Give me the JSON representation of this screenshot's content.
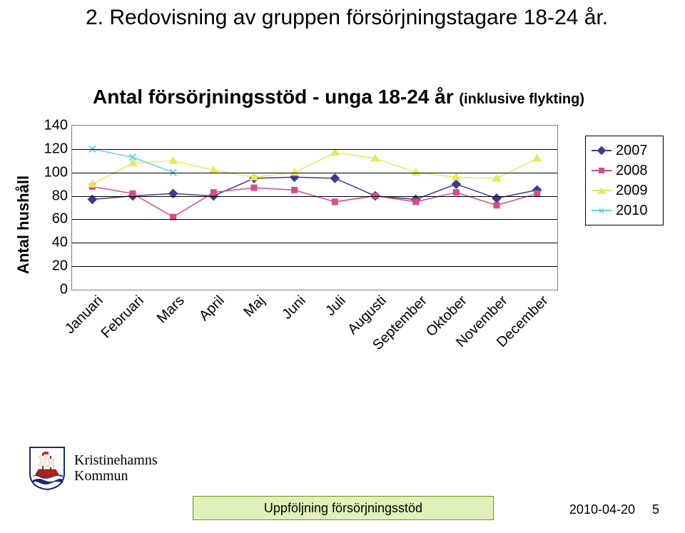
{
  "page_title": "2. Redovisning av gruppen försörjningstagare 18-24 år.",
  "chart": {
    "title_main": "Antal försörjningsstöd - unga 18-24 år ",
    "title_sub": "(inklusive flykting)",
    "ylabel": "Antal hushåll",
    "ylim": [
      0,
      140
    ],
    "ytick_step": 20,
    "yticks": [
      0,
      20,
      40,
      60,
      80,
      100,
      120,
      140
    ],
    "categories": [
      "Januari",
      "Februari",
      "Mars",
      "April",
      "Maj",
      "Juni",
      "Juli",
      "Augusti",
      "September",
      "Oktober",
      "November",
      "December"
    ],
    "series": [
      {
        "name": "2007",
        "color": "#3e3a92",
        "marker": "diamond",
        "values": [
          77,
          80,
          82,
          80,
          95,
          96,
          95,
          80,
          77,
          90,
          78,
          85
        ]
      },
      {
        "name": "2008",
        "color": "#d94a8c",
        "marker": "square",
        "values": [
          88,
          82,
          62,
          83,
          87,
          85,
          75,
          80,
          75,
          83,
          72,
          82
        ]
      },
      {
        "name": "2009",
        "color": "#e8e85a",
        "marker": "triangle",
        "values": [
          90,
          108,
          110,
          102,
          96,
          100,
          117,
          112,
          100,
          96,
          95,
          112
        ]
      },
      {
        "name": "2010",
        "color": "#66d1e6",
        "marker": "x",
        "values": [
          120,
          113,
          100
        ]
      }
    ],
    "grid_color": "#000000",
    "border_color": "#7f7f7f",
    "background_color": "#ffffff",
    "line_width": 1.5,
    "marker_size": 8
  },
  "logo": {
    "line1": "Kristinehamns",
    "line2": "Kommun",
    "shield_bg": "#ffffff",
    "shield_border": "#1a2a6c",
    "ship_hull": "#b02020",
    "sail": "#f4efe0",
    "water1": "#2a55c4",
    "water2": "#1a2a6c"
  },
  "footer": {
    "bar_label": "Uppföljning försörjningsstöd",
    "bar_bg": "#dff0b8",
    "bar_border": "#6f8e23",
    "date": "2010-04-20",
    "page": "5"
  }
}
